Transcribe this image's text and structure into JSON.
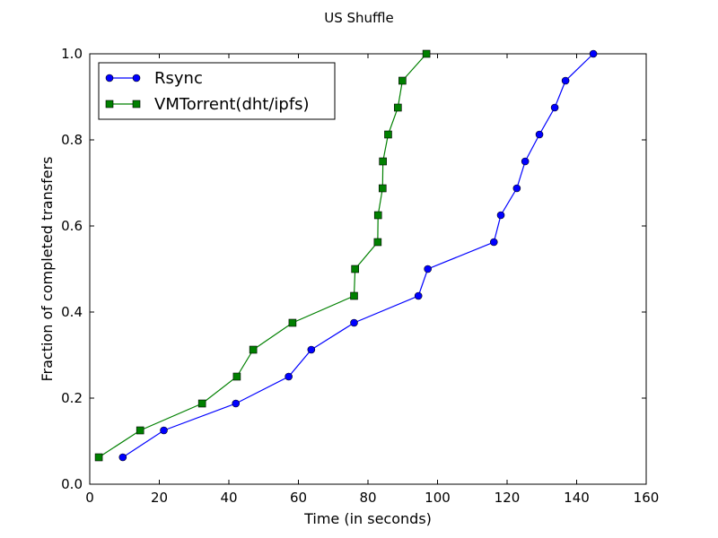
{
  "chart_data": {
    "type": "line",
    "title": "US Shuffle",
    "xlabel": "Time (in seconds)",
    "ylabel": "Fraction of completed transfers",
    "xlim": [
      0,
      160
    ],
    "ylim": [
      0.0,
      1.0
    ],
    "xticks": [
      0,
      20,
      40,
      60,
      80,
      100,
      120,
      140,
      160
    ],
    "xtick_labels": [
      "0",
      "20",
      "40",
      "60",
      "80",
      "100",
      "120",
      "140",
      "160"
    ],
    "yticks": [
      0.0,
      0.2,
      0.4,
      0.6,
      0.8,
      1.0
    ],
    "ytick_labels": [
      "0.0",
      "0.2",
      "0.4",
      "0.6",
      "0.8",
      "1.0"
    ],
    "grid": false,
    "legend_position": "top-left",
    "series": [
      {
        "name": "Rsync",
        "color": "#0000ff",
        "marker": "circle",
        "x": [
          9.5,
          21.3,
          42.0,
          57.2,
          63.7,
          76.0,
          94.5,
          97.2,
          116.2,
          118.2,
          122.8,
          125.2,
          129.3,
          133.7,
          136.8,
          144.8
        ],
        "y": [
          0.0625,
          0.125,
          0.1875,
          0.25,
          0.3125,
          0.375,
          0.4375,
          0.5,
          0.5625,
          0.625,
          0.6875,
          0.75,
          0.8125,
          0.875,
          0.9375,
          1.0
        ]
      },
      {
        "name": "VMTorrent(dht/ipfs)",
        "color": "#008000",
        "marker": "square",
        "x": [
          2.6,
          14.5,
          32.3,
          42.3,
          47.0,
          58.3,
          76.0,
          76.3,
          82.8,
          82.9,
          84.2,
          84.3,
          85.8,
          88.6,
          89.9,
          96.8
        ],
        "y": [
          0.0625,
          0.125,
          0.1875,
          0.25,
          0.3125,
          0.375,
          0.4375,
          0.5,
          0.5625,
          0.625,
          0.6875,
          0.75,
          0.8125,
          0.875,
          0.9375,
          1.0
        ]
      }
    ]
  }
}
